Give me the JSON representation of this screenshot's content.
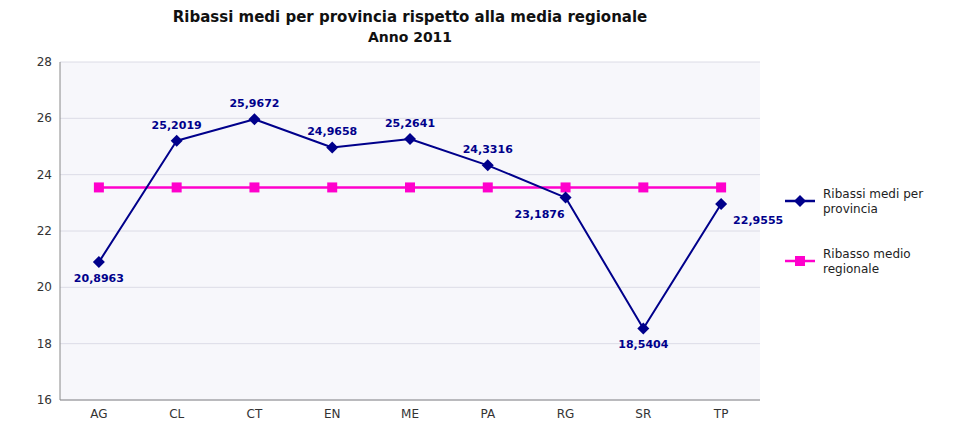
{
  "chart_data": {
    "type": "line",
    "title": "Ribassi medi per provincia rispetto alla media regionale",
    "subtitle": "Anno 2011",
    "categories": [
      "AG",
      "CL",
      "CT",
      "EN",
      "ME",
      "PA",
      "RG",
      "SR",
      "TP"
    ],
    "series": [
      {
        "name": "Ribassi medi per\nprovincia",
        "color": "#00008B",
        "marker": "diamond",
        "line_style": "solid",
        "values": [
          20.8963,
          25.2019,
          25.9672,
          24.9658,
          25.2641,
          24.3316,
          23.1876,
          18.5404,
          22.9555
        ],
        "data_labels": true,
        "value_labels": [
          "20,8963",
          "25,2019",
          "25,9672",
          "24,9658",
          "25,2641",
          "24,3316",
          "23,1876",
          "18,5404",
          "22,9555"
        ]
      },
      {
        "name": "Ribasso medio\nregionale",
        "color": "#FF00CC",
        "marker": "square",
        "line_style": "solid",
        "values": [
          23.5468,
          23.5468,
          23.5468,
          23.5468,
          23.5468,
          23.5468,
          23.5468,
          23.5468,
          23.5468
        ]
      }
    ],
    "ylim": [
      16,
      28
    ],
    "yticks": [
      16,
      18,
      20,
      22,
      24,
      26,
      28
    ],
    "grid": true,
    "legend": "right"
  }
}
